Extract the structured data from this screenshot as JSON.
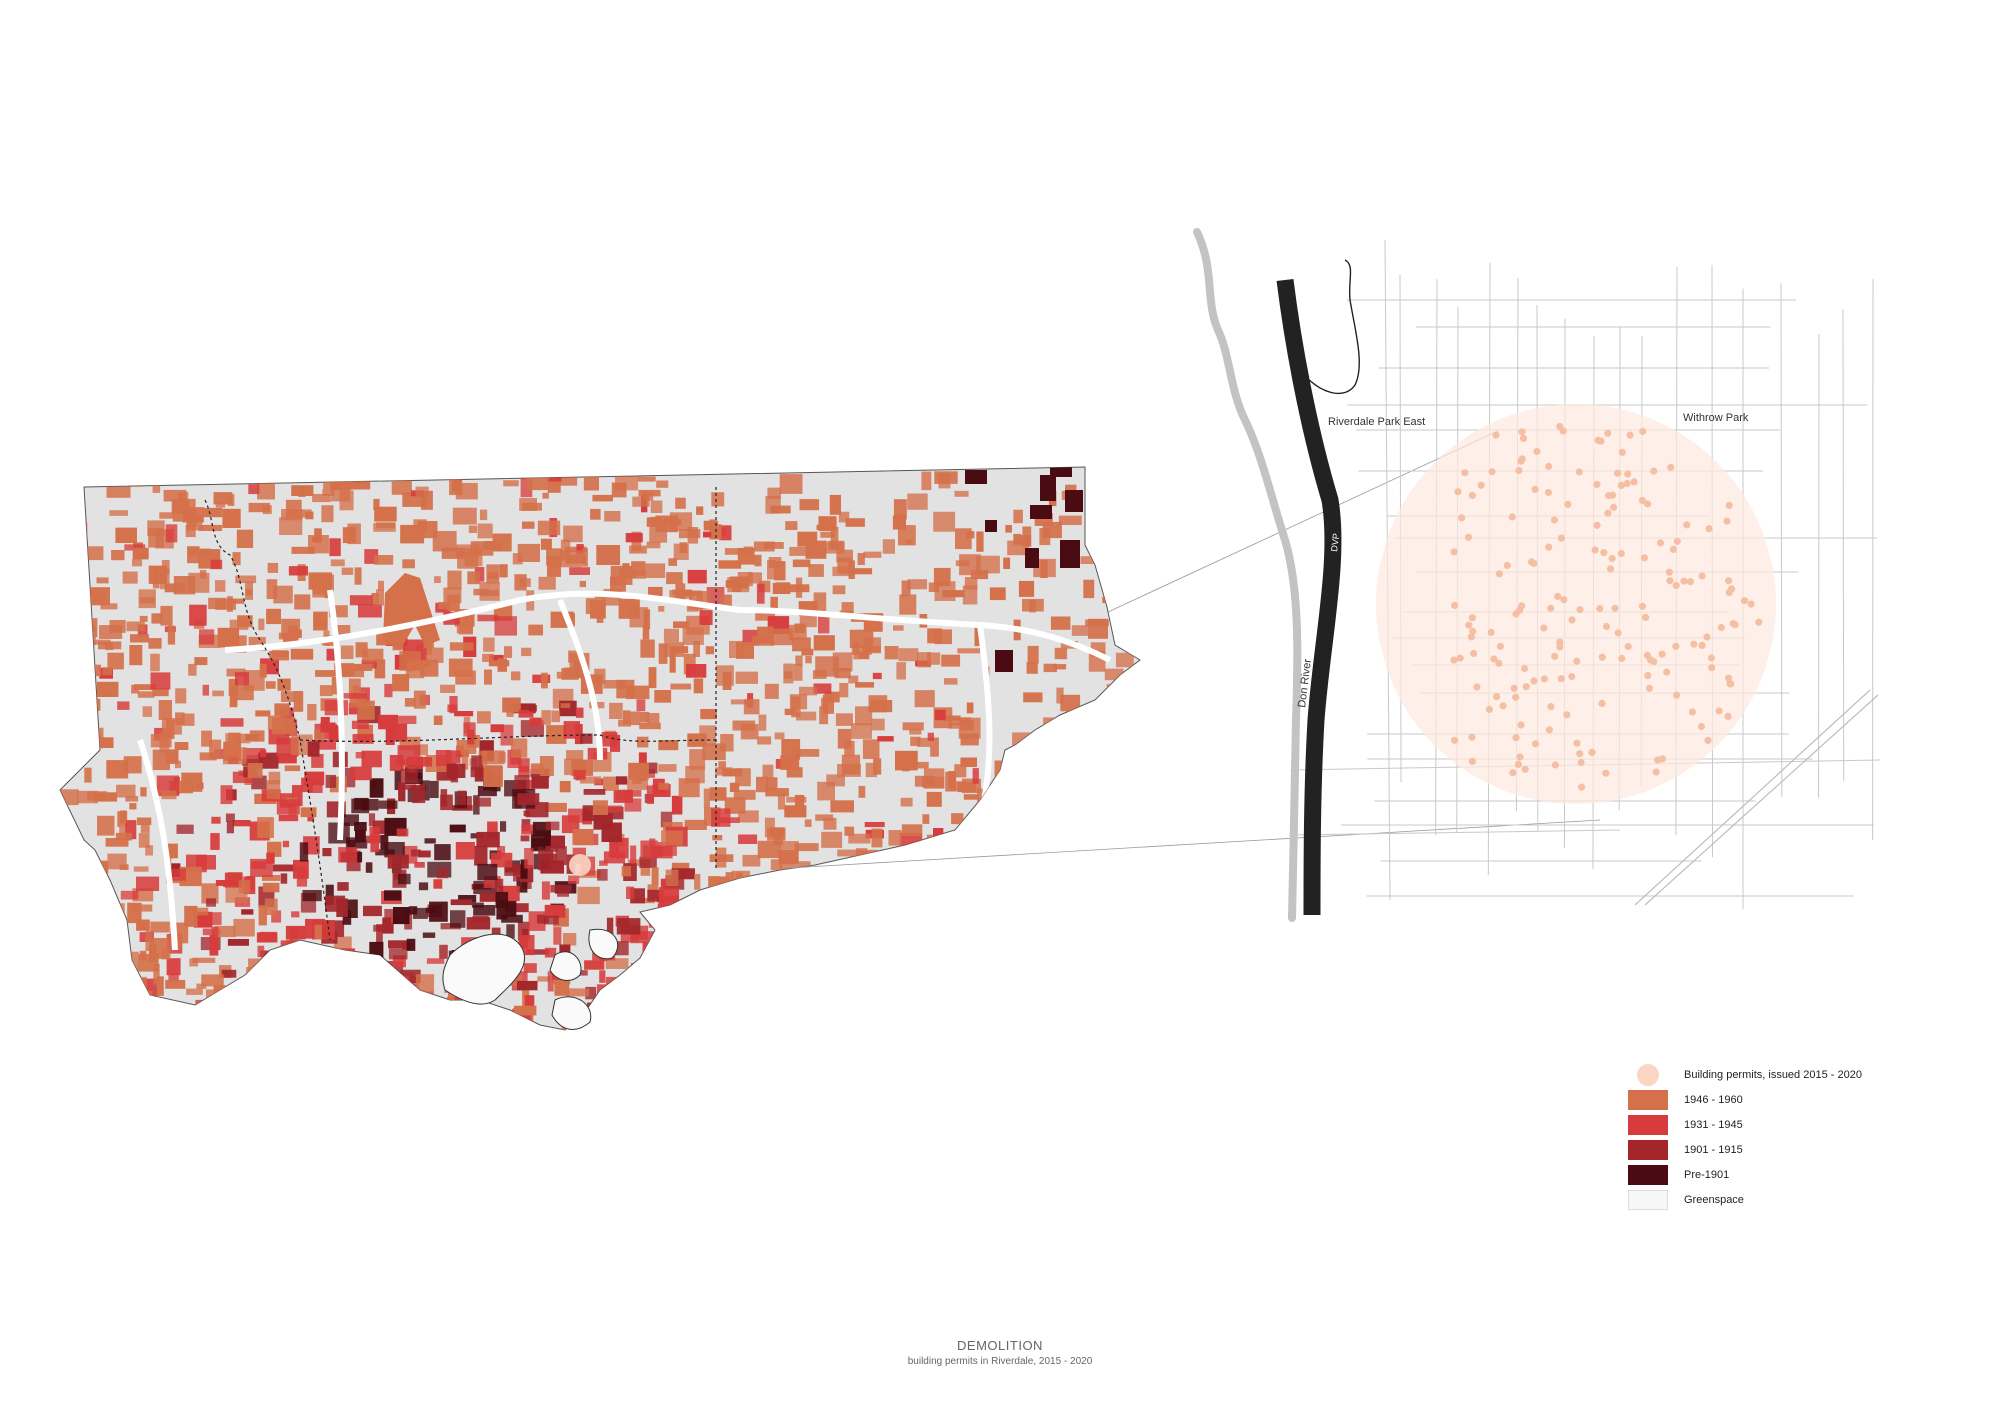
{
  "caption": {
    "title": "DEMOLITION",
    "subtitle": "building permits in Riverdale, 2015 - 2020"
  },
  "inset_labels": {
    "park_east": "Riverdale Park East",
    "park_withrow": "Withrow Park",
    "river": "Don River",
    "highway": "DVP"
  },
  "legend": [
    {
      "label": "Building permits, issued 2015 - 2020",
      "color": "#f9d5c3",
      "kind": "dot"
    },
    {
      "label": "1946 - 1960",
      "color": "#d4704a",
      "kind": "box"
    },
    {
      "label": "1931 - 1945",
      "color": "#d73b3b",
      "kind": "box"
    },
    {
      "label": "1901 - 1915",
      "color": "#a3262b",
      "kind": "box"
    },
    {
      "label": "Pre-1901",
      "color": "#4a0c12",
      "kind": "box"
    },
    {
      "label": "Greenspace",
      "color": "#f7f7f7",
      "kind": "box"
    }
  ],
  "colors": {
    "land": "#e2e2e2",
    "road": "#ffffff",
    "greenspace": "#f7f7f7",
    "permit": "#f9d5c3",
    "era_1946_1960": "#d4704a",
    "era_1931_1945": "#d73b3b",
    "era_1901_1915": "#a3262b",
    "era_pre_1901": "#4a0c12"
  }
}
